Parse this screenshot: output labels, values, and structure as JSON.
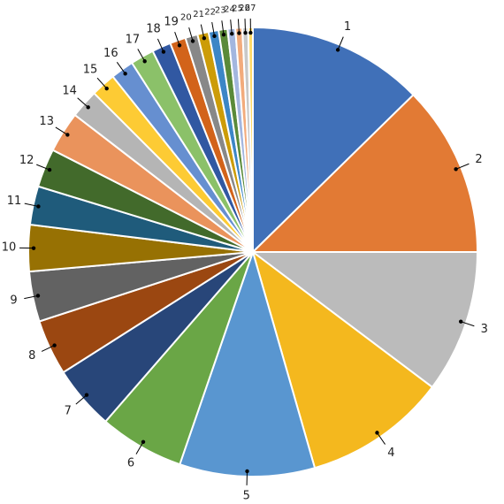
{
  "chart_data": {
    "type": "pie",
    "categories": [
      "1",
      "2",
      "3",
      "4",
      "5",
      "6",
      "7",
      "8",
      "9",
      "10",
      "11",
      "12",
      "13",
      "14",
      "15",
      "16",
      "17",
      "18",
      "19",
      "20",
      "21",
      "22",
      "23",
      "24",
      "25",
      "26",
      "27"
    ],
    "values": [
      45.6,
      44.4,
      37,
      37,
      35,
      22,
      16.6,
      14.4,
      13,
      12,
      10,
      10,
      10.6,
      7.4,
      6.4,
      6,
      6.1,
      4.9,
      4.1,
      3.2,
      2.9,
      2.6,
      2.3,
      2,
      1.8,
      1.5,
      1.2
    ],
    "colors": [
      "#4070b8",
      "#e27a34",
      "#bbbbbb",
      "#f4b81e",
      "#5996d0",
      "#6aa646",
      "#284679",
      "#9b4711",
      "#626262",
      "#977103",
      "#1f5b7b",
      "#426a2b",
      "#ea935c",
      "#b5b5b5",
      "#fdcb34",
      "#668fd0",
      "#8bc169",
      "#3158a2",
      "#d2631a",
      "#888888",
      "#cc9c08",
      "#3c86c6",
      "#5a8a39",
      "#a3b6df",
      "#f2ab7c",
      "#c8c8c8",
      "#ffd966"
    ]
  }
}
